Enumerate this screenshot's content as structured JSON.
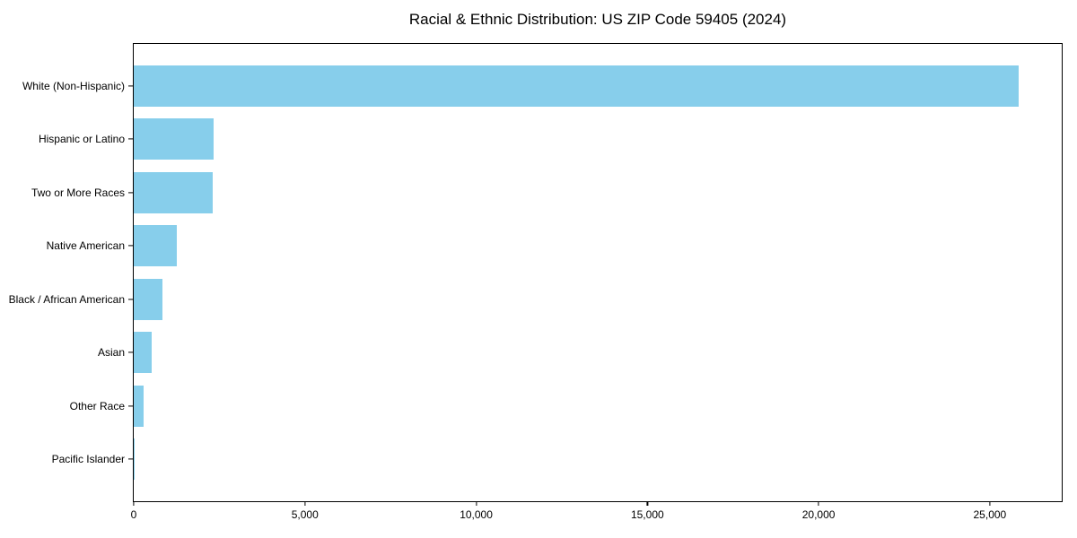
{
  "chart_data": {
    "type": "bar",
    "orientation": "horizontal",
    "title": "Racial & Ethnic Distribution: US ZIP Code 59405 (2024)",
    "categories": [
      "White (Non-Hispanic)",
      "Hispanic or Latino",
      "Two or More Races",
      "Native American",
      "Black / African American",
      "Asian",
      "Other Race",
      "Pacific Islander"
    ],
    "values": [
      25840,
      2330,
      2300,
      1255,
      840,
      520,
      290,
      25
    ],
    "xlabel": "",
    "ylabel": "",
    "xlim": [
      0,
      27100
    ],
    "x_ticks": [
      {
        "value": 0,
        "label": "0"
      },
      {
        "value": 5000,
        "label": "5,000"
      },
      {
        "value": 10000,
        "label": "10,000"
      },
      {
        "value": 15000,
        "label": "15,000"
      },
      {
        "value": 20000,
        "label": "20,000"
      },
      {
        "value": 25000,
        "label": "25,000"
      }
    ],
    "bar_color": "#87CEEB",
    "axis_color": "#000000",
    "background_color": "#ffffff",
    "grid": false
  }
}
